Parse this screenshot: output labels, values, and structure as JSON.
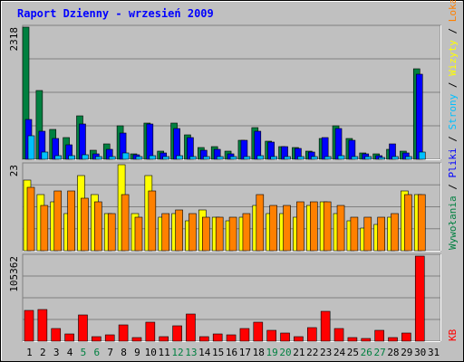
{
  "title": "Raport Dzienny -  wrzesień 2009",
  "panel_maxima": [
    "2318",
    "23",
    "105362"
  ],
  "right_legend": {
    "top": [
      {
        "text": "Wywołania",
        "color": "#008040"
      },
      {
        "text": " / ",
        "color": "#000000"
      },
      {
        "text": "Pliki",
        "color": "#0000FF"
      },
      {
        "text": " / ",
        "color": "#000000"
      },
      {
        "text": "Strony",
        "color": "#00C0FF"
      },
      {
        "text": " / ",
        "color": "#000000"
      },
      {
        "text": "Wizyty",
        "color": "#FFFF00"
      },
      {
        "text": " / ",
        "color": "#000000"
      },
      {
        "text": "Lokalizacje",
        "color": "#FF8000"
      }
    ],
    "bottom": {
      "text": "KB",
      "color": "#FF0000"
    }
  },
  "chart_data": {
    "type": "bar",
    "title": "Raport Dzienny -  wrzesień 2009",
    "categories": [
      "1",
      "2",
      "3",
      "4",
      "5",
      "6",
      "7",
      "8",
      "9",
      "10",
      "11",
      "12",
      "13",
      "14",
      "15",
      "16",
      "17",
      "18",
      "19",
      "20",
      "21",
      "22",
      "23",
      "24",
      "25",
      "26",
      "27",
      "28",
      "29",
      "30",
      "31"
    ],
    "weekend_days": [
      "5",
      "6",
      "12",
      "13",
      "19",
      "20",
      "26",
      "27"
    ],
    "colors": {
      "hits": "#008040",
      "files": "#0000FF",
      "pages": "#00C0FF",
      "visits": "#FFFF00",
      "sites": "#FF8000",
      "kb": "#FF0000",
      "weekend_label": "#008040",
      "background": "#C0C0C0"
    },
    "panels": [
      {
        "name": "top",
        "ylim": [
          0,
          2318
        ],
        "series": [
          {
            "name": "Wywołania",
            "values": [
              2318,
              1200,
              520,
              380,
              770,
              160,
              270,
              580,
              100,
              640,
              150,
              630,
              430,
              200,
              230,
              140,
              340,
              560,
              310,
              230,
              210,
              140,
              360,
              590,
              360,
              110,
              90,
              170,
              140,
              1580,
              0
            ]
          },
          {
            "name": "Pliki",
            "values": [
              700,
              490,
              360,
              250,
              620,
              100,
              180,
              460,
              80,
              620,
              110,
              540,
              380,
              160,
              180,
              90,
              340,
              500,
              300,
              220,
              190,
              130,
              380,
              540,
              340,
              90,
              70,
              270,
              110,
              1490,
              0
            ]
          },
          {
            "name": "Strony",
            "values": [
              410,
              120,
              70,
              60,
              80,
              50,
              50,
              110,
              40,
              70,
              40,
              60,
              50,
              50,
              50,
              40,
              50,
              70,
              50,
              40,
              40,
              40,
              50,
              60,
              40,
              40,
              30,
              40,
              50,
              120,
              0
            ]
          }
        ]
      },
      {
        "name": "middle",
        "ylim": [
          0,
          23
        ],
        "series": [
          {
            "name": "Wizyty",
            "values": [
              19,
              15,
              13,
              10,
              20,
              15,
              10,
              23,
              10,
              20,
              9,
              10,
              8,
              11,
              9,
              8,
              9,
              12,
              10,
              10,
              9,
              12,
              13,
              10,
              8,
              6,
              7,
              9,
              16,
              15,
              0
            ]
          },
          {
            "name": "Lokalizacje",
            "values": [
              17,
              12,
              16,
              16,
              14,
              13,
              10,
              15,
              9,
              16,
              10,
              11,
              10,
              9,
              9,
              9,
              10,
              15,
              12,
              12,
              13,
              13,
              13,
              12,
              9,
              9,
              9,
              10,
              15,
              15,
              0
            ]
          }
        ]
      },
      {
        "name": "bottom",
        "ylim": [
          0,
          105362
        ],
        "series": [
          {
            "name": "KB",
            "values": [
              38000,
              39000,
              16000,
              9000,
              33000,
              6000,
              8000,
              20000,
              5000,
              24000,
              6000,
              19000,
              34000,
              6000,
              9000,
              8000,
              16000,
              23000,
              13000,
              10000,
              6000,
              17000,
              37000,
              16000,
              4000,
              3000,
              13000,
              5000,
              10000,
              105362,
              0
            ]
          }
        ]
      }
    ]
  }
}
